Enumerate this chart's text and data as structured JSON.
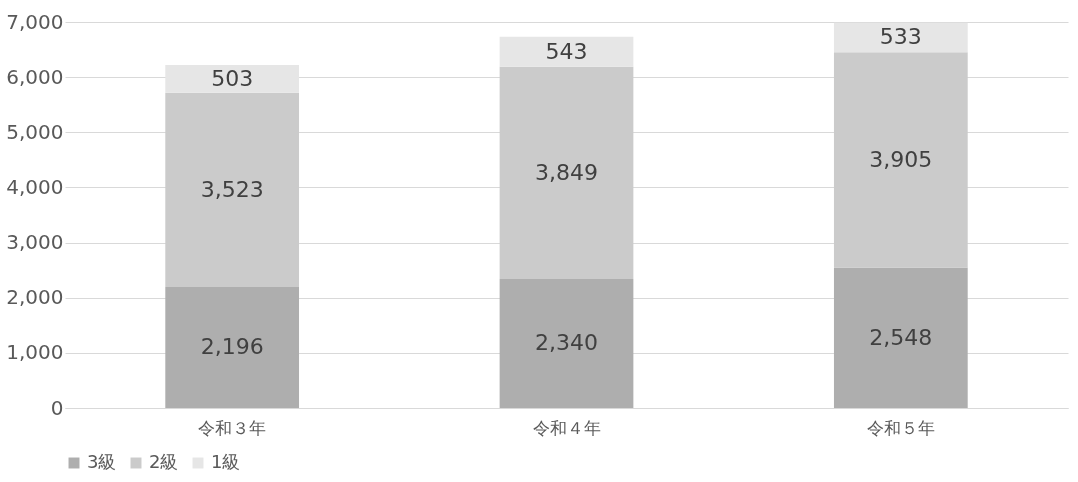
{
  "chart_data": {
    "type": "bar",
    "stacked": true,
    "categories": [
      "令和３年",
      "令和４年",
      "令和５年"
    ],
    "series": [
      {
        "name": "3級",
        "color": "#aeaeae",
        "values": [
          2196,
          2340,
          2548
        ],
        "value_labels": [
          "2,196",
          "2,340",
          "2,548"
        ]
      },
      {
        "name": "2級",
        "color": "#cbcbcb",
        "values": [
          3523,
          3849,
          3905
        ],
        "value_labels": [
          "3,523",
          "3,849",
          "3,905"
        ]
      },
      {
        "name": "1級",
        "color": "#e6e6e6",
        "values": [
          503,
          543,
          533
        ],
        "value_labels": [
          "503",
          "543",
          "533"
        ]
      }
    ],
    "ylim": [
      0,
      7000
    ],
    "yticks": [
      0,
      {
        "value": 1000,
        "label": "1,000"
      },
      {
        "value": 2000,
        "label": "2,000"
      },
      {
        "value": 3000,
        "label": "3,000"
      },
      {
        "value": 4000,
        "label": "4,000"
      },
      {
        "value": 5000,
        "label": "5,000"
      },
      {
        "value": 6000,
        "label": "6,000"
      },
      {
        "value": 7000,
        "label": "7,000"
      }
    ],
    "grid": "y",
    "legend": "bottom"
  }
}
